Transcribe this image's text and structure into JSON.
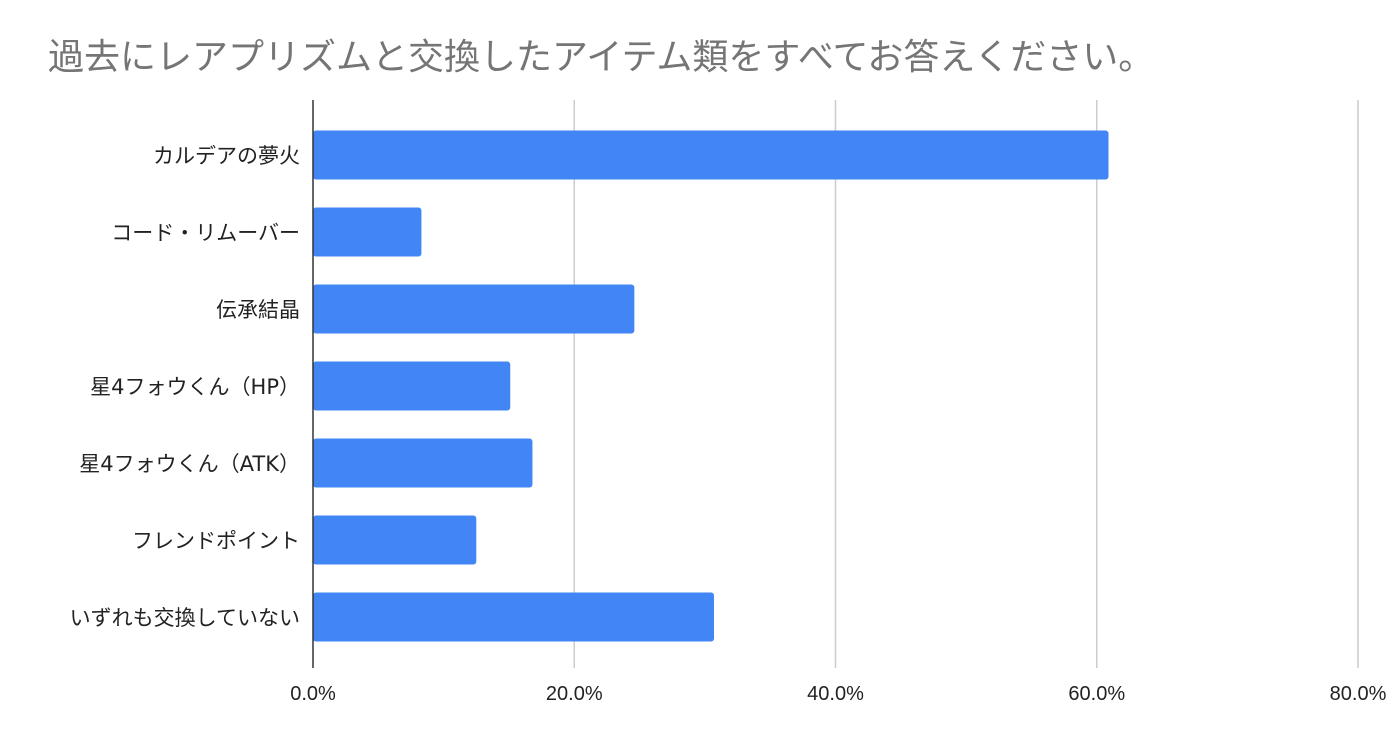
{
  "chart_data": {
    "type": "bar",
    "orientation": "horizontal",
    "title": "過去にレアプリズムと交換したアイテム類をすべてお答えください。",
    "xlabel": "",
    "ylabel": "",
    "categories": [
      "カルデアの夢火",
      "コード・リムーバー",
      "伝承結晶",
      "星4フォウくん（HP）",
      "星4フォウくん（ATK）",
      "フレンドポイント",
      "いずれも交換していない"
    ],
    "series": [
      {
        "values": [
          60.9,
          8.3,
          24.6,
          15.1,
          16.8,
          12.5,
          30.7
        ]
      }
    ],
    "xlim": [
      0,
      80
    ],
    "ticks": [
      0,
      20,
      40,
      60,
      80
    ],
    "tick_labels": [
      "0.0%",
      "20.0%",
      "40.0%",
      "60.0%",
      "80.0%"
    ],
    "grid": true,
    "legend": "none",
    "colors": {
      "bar": "#4285f4",
      "grid": "#cccccc",
      "axis": "#333333",
      "title": "#757575"
    }
  }
}
